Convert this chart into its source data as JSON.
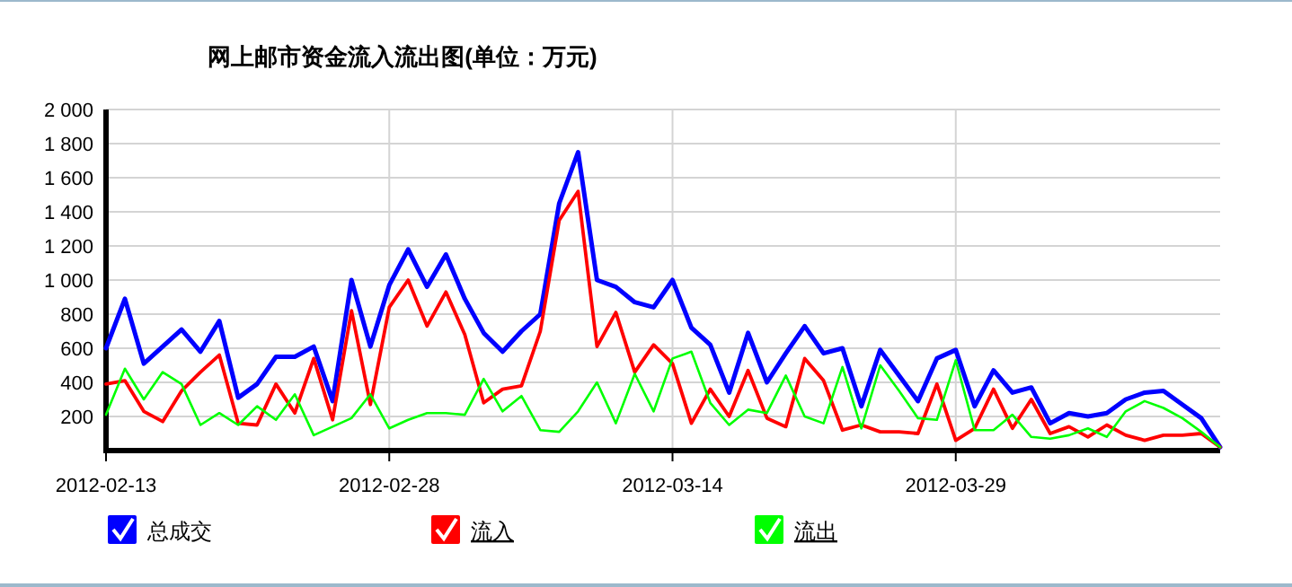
{
  "chart_data": {
    "type": "line",
    "title": "网上邮市资金流入流出图(单位：万元)",
    "x": [
      "2012-02-13",
      "2012-02-14",
      "2012-02-15",
      "2012-02-16",
      "2012-02-17",
      "2012-02-18",
      "2012-02-19",
      "2012-02-20",
      "2012-02-21",
      "2012-02-22",
      "2012-02-23",
      "2012-02-24",
      "2012-02-25",
      "2012-02-26",
      "2012-02-27",
      "2012-02-28",
      "2012-02-29",
      "2012-03-01",
      "2012-03-02",
      "2012-03-03",
      "2012-03-04",
      "2012-03-05",
      "2012-03-06",
      "2012-03-07",
      "2012-03-08",
      "2012-03-09",
      "2012-03-10",
      "2012-03-11",
      "2012-03-12",
      "2012-03-13",
      "2012-03-14",
      "2012-03-15",
      "2012-03-16",
      "2012-03-17",
      "2012-03-18",
      "2012-03-19",
      "2012-03-20",
      "2012-03-21",
      "2012-03-22",
      "2012-03-23",
      "2012-03-24",
      "2012-03-25",
      "2012-03-26",
      "2012-03-27",
      "2012-03-28",
      "2012-03-29",
      "2012-03-30",
      "2012-03-31",
      "2012-04-01",
      "2012-04-02",
      "2012-04-03",
      "2012-04-04",
      "2012-04-05",
      "2012-04-06",
      "2012-04-07",
      "2012-04-08",
      "2012-04-09",
      "2012-04-10",
      "2012-04-11",
      "2012-04-12"
    ],
    "series": [
      {
        "name": "总成交",
        "color": "#0000ff",
        "values": [
          600,
          890,
          510,
          610,
          710,
          580,
          760,
          310,
          390,
          550,
          550,
          610,
          290,
          1000,
          610,
          970,
          1180,
          960,
          1150,
          890,
          690,
          580,
          700,
          800,
          1450,
          1750,
          1000,
          960,
          870,
          840,
          1000,
          720,
          620,
          340,
          690,
          400,
          570,
          730,
          570,
          600,
          260,
          590,
          440,
          290,
          540,
          590,
          260,
          470,
          340,
          370,
          160,
          220,
          200,
          220,
          300,
          340,
          350,
          270,
          190,
          20
        ]
      },
      {
        "name": "流入",
        "color": "#ff0000",
        "values": [
          390,
          410,
          230,
          170,
          350,
          460,
          560,
          160,
          150,
          390,
          220,
          540,
          180,
          820,
          270,
          840,
          1000,
          730,
          930,
          680,
          280,
          360,
          380,
          700,
          1350,
          1520,
          610,
          810,
          460,
          620,
          510,
          160,
          360,
          200,
          470,
          190,
          140,
          540,
          410,
          120,
          150,
          110,
          110,
          100,
          390,
          60,
          130,
          360,
          130,
          300,
          100,
          140,
          80,
          150,
          90,
          60,
          90,
          90,
          100,
          20
        ]
      },
      {
        "name": "流出",
        "color": "#00ff00",
        "values": [
          210,
          480,
          300,
          460,
          390,
          150,
          220,
          150,
          260,
          180,
          330,
          90,
          140,
          190,
          330,
          130,
          180,
          220,
          220,
          210,
          420,
          230,
          320,
          120,
          110,
          230,
          400,
          160,
          450,
          230,
          540,
          580,
          280,
          150,
          240,
          220,
          440,
          200,
          160,
          490,
          130,
          500,
          350,
          190,
          180,
          530,
          120,
          120,
          210,
          80,
          70,
          90,
          130,
          80,
          230,
          290,
          250,
          190,
          110,
          20
        ]
      }
    ],
    "xlim": [
      "2012-02-13",
      "2012-04-12"
    ],
    "xticks": [
      "2012-02-13",
      "2012-02-28",
      "2012-03-14",
      "2012-03-29"
    ],
    "ylim": [
      0,
      2000
    ],
    "yticks": [
      200,
      400,
      600,
      800,
      {
        "value": 1000,
        "label": "1 000"
      },
      {
        "value": 1200,
        "label": "1 200"
      },
      {
        "value": 1400,
        "label": "1 400"
      },
      {
        "value": 1600,
        "label": "1 600"
      },
      {
        "value": 1800,
        "label": "1 800"
      },
      {
        "value": 2000,
        "label": "2 000"
      }
    ],
    "grid": true,
    "legend": "bottom",
    "marker": "none",
    "line_style": "solid"
  }
}
